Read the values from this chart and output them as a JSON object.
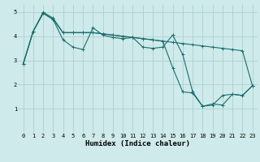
{
  "title": "",
  "xlabel": "Humidex (Indice chaleur)",
  "ylabel": "",
  "background_color": "#ceeaea",
  "grid_color": "#aed0d0",
  "line_color": "#1a6e6e",
  "x_values": [
    0,
    1,
    2,
    3,
    4,
    5,
    6,
    7,
    8,
    9,
    10,
    11,
    12,
    13,
    14,
    15,
    16,
    17,
    18,
    19,
    20,
    21,
    22,
    23
  ],
  "series1": [
    2.85,
    4.2,
    4.95,
    4.7,
    3.85,
    3.55,
    3.45,
    4.35,
    4.05,
    3.95,
    3.9,
    3.95,
    3.55,
    3.5,
    3.55,
    4.05,
    3.25,
    1.7,
    1.1,
    1.2,
    1.15,
    1.6,
    1.55,
    1.95
  ],
  "series2": [
    2.85,
    4.2,
    5.0,
    4.75,
    4.15,
    4.15,
    4.15,
    4.15,
    4.1,
    4.05,
    4.0,
    3.95,
    3.9,
    3.85,
    3.8,
    3.75,
    3.7,
    3.65,
    3.6,
    3.55,
    3.5,
    3.45,
    3.4,
    1.95
  ],
  "series3": [
    2.85,
    4.2,
    4.95,
    4.7,
    4.15,
    4.15,
    4.15,
    4.15,
    4.1,
    4.05,
    4.0,
    3.95,
    3.9,
    3.85,
    3.8,
    2.7,
    1.7,
    1.65,
    1.1,
    1.15,
    1.55,
    1.6,
    1.55,
    1.95
  ],
  "ylim": [
    0,
    5.3
  ],
  "xlim": [
    -0.5,
    23.5
  ],
  "yticks": [
    1,
    2,
    3,
    4,
    5
  ],
  "xticks": [
    0,
    1,
    2,
    3,
    4,
    5,
    6,
    7,
    8,
    9,
    10,
    11,
    12,
    13,
    14,
    15,
    16,
    17,
    18,
    19,
    20,
    21,
    22,
    23
  ],
  "marker": "+",
  "markersize": 3,
  "linewidth": 0.8,
  "tick_fontsize": 5.0,
  "xlabel_fontsize": 6.5,
  "xlabel_fontweight": "bold"
}
